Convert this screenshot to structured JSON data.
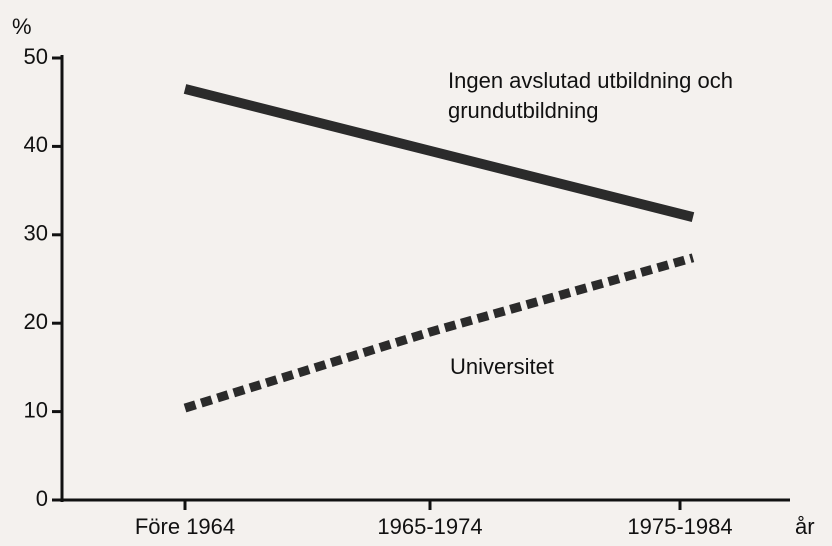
{
  "chart_data": {
    "type": "line",
    "y_label": "%",
    "x_label": "år",
    "categories": [
      "Före 1964",
      "1965-1974",
      "1975-1984"
    ],
    "series": [
      {
        "name": "Ingen avslutad utbildning och grundutbildning",
        "color": "#2b2b2b",
        "style": "solid",
        "values": [
          46.5,
          39.5,
          32
        ]
      },
      {
        "name": "Universitet",
        "color": "#2b2b2b",
        "style": "dashed",
        "values": [
          10.4,
          19,
          27.4
        ]
      }
    ],
    "ylim": [
      0,
      50
    ],
    "yticks": [
      0,
      10,
      20,
      30,
      40,
      50
    ],
    "grid": false
  }
}
